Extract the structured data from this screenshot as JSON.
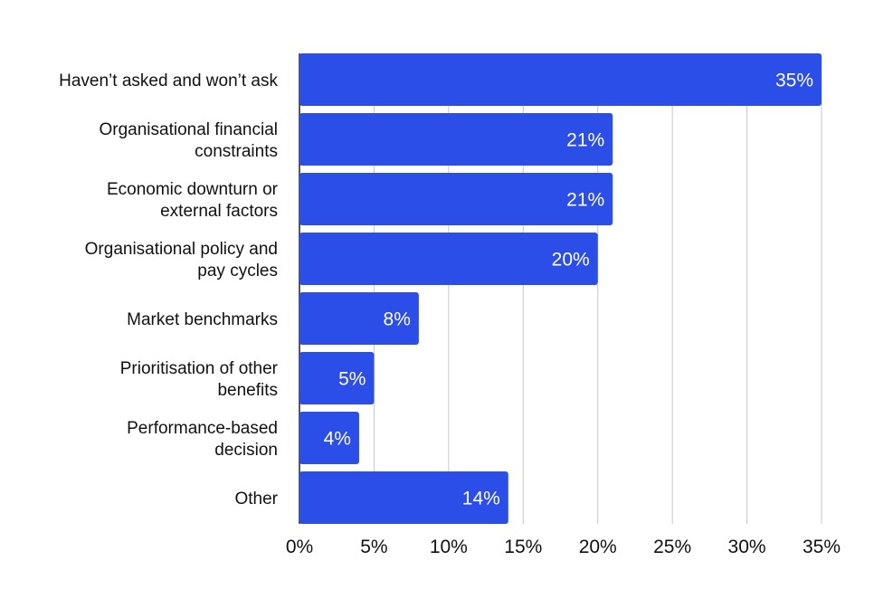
{
  "chart_data": {
    "type": "bar",
    "orientation": "horizontal",
    "title": "",
    "xlabel": "",
    "ylabel": "",
    "categories": [
      [
        "Haven’t asked and won’t ask"
      ],
      [
        "Organisational financial",
        "constraints"
      ],
      [
        "Economic downturn or",
        "external factors"
      ],
      [
        "Organisational policy and",
        "pay cycles"
      ],
      [
        "Market benchmarks"
      ],
      [
        "Prioritisation of other",
        "benefits"
      ],
      [
        "Performance-based",
        "decision"
      ],
      [
        "Other"
      ]
    ],
    "values": [
      35,
      21,
      21,
      20,
      8,
      5,
      4,
      14
    ],
    "value_labels": [
      "35%",
      "21%",
      "21%",
      "20%",
      "8%",
      "5%",
      "4%",
      "14%"
    ],
    "xlim": [
      0,
      35
    ],
    "ticks": [
      0,
      5,
      10,
      15,
      20,
      25,
      30,
      35
    ],
    "tick_labels": [
      "0%",
      "5%",
      "10%",
      "15%",
      "20%",
      "25%",
      "30%",
      "35%"
    ],
    "grid": "vertical",
    "legend": "none",
    "bar_color": "#2b4de8"
  }
}
